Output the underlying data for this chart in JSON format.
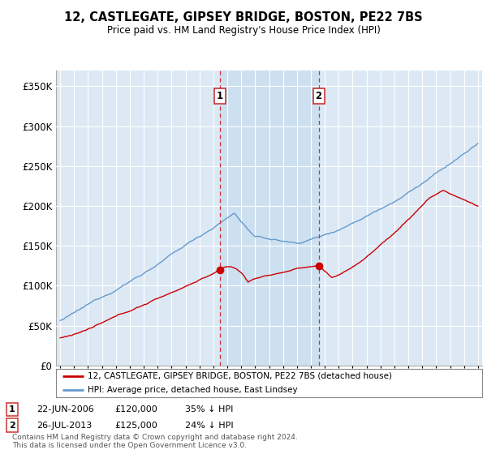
{
  "title": "12, CASTLEGATE, GIPSEY BRIDGE, BOSTON, PE22 7BS",
  "subtitle": "Price paid vs. HM Land Registry's House Price Index (HPI)",
  "ylim": [
    0,
    370000
  ],
  "yticks": [
    0,
    50000,
    100000,
    150000,
    200000,
    250000,
    300000,
    350000
  ],
  "sale1_date": "22-JUN-2006",
  "sale1_price": 120000,
  "sale1_pct": "35% ↓ HPI",
  "sale1_year": 2006.46,
  "sale2_date": "26-JUL-2013",
  "sale2_price": 125000,
  "sale2_pct": "24% ↓ HPI",
  "sale2_year": 2013.56,
  "legend_label_red": "12, CASTLEGATE, GIPSEY BRIDGE, BOSTON, PE22 7BS (detached house)",
  "legend_label_blue": "HPI: Average price, detached house, East Lindsey",
  "footnote_line1": "Contains HM Land Registry data © Crown copyright and database right 2024.",
  "footnote_line2": "This data is licensed under the Open Government Licence v3.0.",
  "background_color": "#dce9f5",
  "shade_color": "#cce0f0",
  "red_color": "#cc0000",
  "blue_color": "#6699cc",
  "vline_color": "#cc3333",
  "grid_color": "#ffffff",
  "xmin": 1995,
  "xmax": 2025
}
